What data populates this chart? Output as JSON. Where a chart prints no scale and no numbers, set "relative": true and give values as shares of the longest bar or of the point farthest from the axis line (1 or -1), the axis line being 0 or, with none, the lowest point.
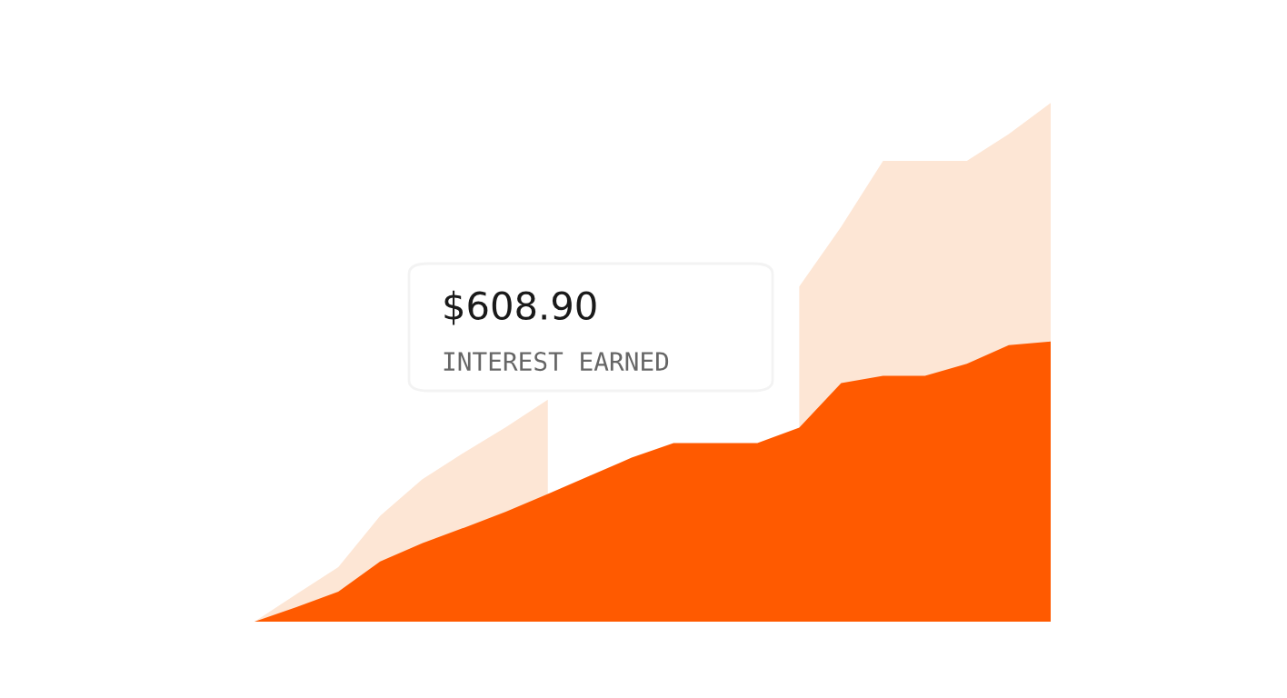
{
  "chart_data": {
    "type": "area",
    "relative": true,
    "categories": [
      null,
      null,
      null,
      null,
      null,
      null,
      null,
      null,
      null,
      null,
      null,
      null,
      null,
      null,
      null,
      null,
      null,
      null,
      null,
      null
    ],
    "series": [
      {
        "color": "#fde6d5",
        "values": [
          0,
          0.053,
          0.105,
          0.204,
          0.274,
          0.326,
          0.375,
          0.428,
          null,
          null,
          null,
          null,
          null,
          0.646,
          0.761,
          0.888,
          0.888,
          0.888,
          0.94,
          1
        ]
      },
      {
        "color": "#ff5a00",
        "values": [
          0,
          0.028,
          0.058,
          0.116,
          0.151,
          0.181,
          0.212,
          0.246,
          0.281,
          0.316,
          0.344,
          0.344,
          0.344,
          0.374,
          0.46,
          0.474,
          0.474,
          0.497,
          0.533,
          0.54
        ]
      }
    ],
    "annotations": [
      "$608.90",
      "INTEREST EARNED"
    ]
  }
}
